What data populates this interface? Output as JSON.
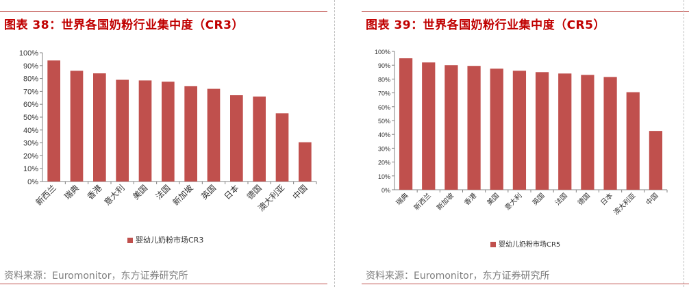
{
  "left": {
    "title": "图表 38：世界各国奶粉行业集中度（CR3）",
    "source": "资料来源：Euromonitor，东方证券研究所",
    "legend": "婴幼儿奶粉市场CR3"
  },
  "right": {
    "title": "图表 39：世界各国奶粉行业集中度（CR5）",
    "source": "资料来源：Euromonitor，东方证券研究所",
    "legend": "婴幼儿奶粉市场CR5"
  },
  "colors": {
    "bar": "#c0504d",
    "title": "#c00000",
    "rule": "#c0504d"
  },
  "chart_data": [
    {
      "type": "bar",
      "title": "",
      "categories": [
        "新西兰",
        "瑞典",
        "香港",
        "意大利",
        "美国",
        "法国",
        "新加坡",
        "英国",
        "日本",
        "德国",
        "澳大利亚",
        "中国"
      ],
      "series": [
        {
          "name": "婴幼儿奶粉市场CR3",
          "values": [
            94,
            86,
            84,
            79,
            78.5,
            77.5,
            74,
            72,
            67,
            66,
            53,
            30.5
          ]
        }
      ],
      "yticks": [
        "0%",
        "10%",
        "20%",
        "30%",
        "40%",
        "50%",
        "60%",
        "70%",
        "80%",
        "90%",
        "100%"
      ],
      "ylim": [
        0,
        100
      ],
      "grid": false,
      "legend_position": "bottom"
    },
    {
      "type": "bar",
      "title": "",
      "categories": [
        "瑞典",
        "新西兰",
        "新加坡",
        "香港",
        "美国",
        "意大利",
        "英国",
        "法国",
        "德国",
        "日本",
        "澳大利亚",
        "中国"
      ],
      "series": [
        {
          "name": "婴幼儿奶粉市场CR5",
          "values": [
            95,
            92,
            90,
            89.5,
            87.5,
            86,
            85,
            84,
            83,
            81.5,
            70.5,
            42.5
          ]
        }
      ],
      "yticks": [
        "0%",
        "10%",
        "20%",
        "30%",
        "40%",
        "50%",
        "60%",
        "70%",
        "80%",
        "90%",
        "100%"
      ],
      "ylim": [
        0,
        100
      ],
      "grid": false,
      "legend_position": "bottom"
    }
  ]
}
